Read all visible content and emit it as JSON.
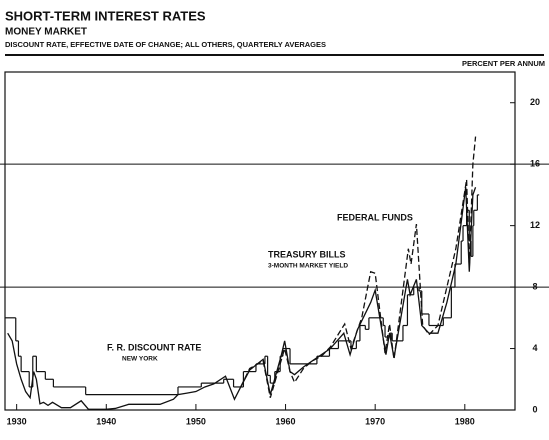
{
  "chart_data": {
    "type": "line",
    "title": "SHORT-TERM INTEREST RATES",
    "subtitle": "MONEY MARKET",
    "note": "DISCOUNT RATE, EFFECTIVE DATE OF CHANGE; ALL OTHERS, QUARTERLY AVERAGES",
    "y_axis_label": "PERCENT PER ANNUM",
    "xlim": [
      1928.7,
      1985.6
    ],
    "ylim": [
      0,
      22
    ],
    "xticks": [
      1930,
      1940,
      1950,
      1960,
      1970,
      1980
    ],
    "yticks": [
      0,
      4,
      8,
      12,
      16,
      20
    ],
    "hlines": [
      8,
      16
    ],
    "y_axis_side": "right",
    "annotations": [
      {
        "text": "FEDERAL FUNDS"
      },
      {
        "text": "TREASURY BILLS"
      },
      {
        "text": "3-MONTH MARKET YIELD"
      },
      {
        "text": "F. R. DISCOUNT RATE"
      },
      {
        "text": "NEW YORK"
      }
    ],
    "series": [
      {
        "name": "F. R. DISCOUNT RATE",
        "color": "#111",
        "style": "step",
        "x": [
          1928.7,
          1929.9,
          1930.2,
          1930.5,
          1931.4,
          1931.8,
          1932.2,
          1933.2,
          1934.1,
          1937.7,
          1948.0,
          1950.6,
          1953.1,
          1954.2,
          1955.3,
          1956.7,
          1957.7,
          1958.0,
          1958.3,
          1958.8,
          1959.4,
          1959.7,
          1960.5,
          1963.5,
          1964.9,
          1965.9,
          1967.3,
          1967.9,
          1968.3,
          1968.9,
          1969.3,
          1970.9,
          1971.1,
          1971.6,
          1971.9,
          1973.1,
          1973.6,
          1974.3,
          1974.9,
          1975.2,
          1976.0,
          1977.6,
          1978.5,
          1978.9,
          1979.6,
          1979.8,
          1980.2,
          1980.5,
          1980.7,
          1980.9,
          1981.0,
          1981.4,
          1981.6
        ],
        "values": [
          6.0,
          4.5,
          3.5,
          2.5,
          1.5,
          3.5,
          2.5,
          2.0,
          1.5,
          1.0,
          1.5,
          1.75,
          2.0,
          1.5,
          2.5,
          3.0,
          3.5,
          2.25,
          1.75,
          2.5,
          3.5,
          4.0,
          3.0,
          3.5,
          4.0,
          4.5,
          4.0,
          4.5,
          5.5,
          5.25,
          6.0,
          5.5,
          4.75,
          5.0,
          4.5,
          5.5,
          7.5,
          8.0,
          7.75,
          6.25,
          5.5,
          6.0,
          8.0,
          9.5,
          11.0,
          12.0,
          13.0,
          11.0,
          10.0,
          12.0,
          13.0,
          14.0,
          14.0
        ]
      },
      {
        "name": "TREASURY BILLS",
        "color": "#111",
        "style": "solid",
        "x": [
          1929.0,
          1929.5,
          1930.0,
          1930.5,
          1931.0,
          1931.5,
          1931.9,
          1932.2,
          1932.6,
          1933.0,
          1933.5,
          1934.0,
          1935.0,
          1936.0,
          1937.2,
          1938.0,
          1940.0,
          1941.0,
          1942.5,
          1946.0,
          1947.5,
          1948.0,
          1949.0,
          1950.0,
          1951.0,
          1952.0,
          1953.3,
          1954.3,
          1955.0,
          1956.0,
          1957.5,
          1958.3,
          1959.5,
          1959.9,
          1960.5,
          1961.0,
          1962.0,
          1963.0,
          1964.0,
          1965.0,
          1966.5,
          1967.2,
          1968.0,
          1969.5,
          1970.0,
          1971.2,
          1971.6,
          1972.1,
          1973.6,
          1973.9,
          1974.6,
          1975.2,
          1976.0,
          1977.0,
          1978.0,
          1979.0,
          1980.1,
          1980.5,
          1980.9,
          1981.2
        ],
        "values": [
          5.0,
          4.5,
          3.0,
          2.0,
          1.2,
          0.8,
          2.5,
          2.0,
          0.4,
          0.5,
          0.3,
          0.5,
          0.15,
          0.15,
          0.6,
          0.05,
          0.05,
          0.1,
          0.37,
          0.37,
          0.7,
          1.0,
          1.1,
          1.2,
          1.5,
          1.7,
          2.2,
          0.7,
          1.5,
          2.6,
          3.3,
          1.0,
          3.5,
          4.5,
          2.5,
          2.3,
          2.8,
          3.2,
          3.6,
          4.0,
          5.0,
          3.6,
          5.2,
          7.0,
          7.8,
          3.6,
          5.0,
          3.4,
          8.5,
          7.5,
          8.5,
          5.5,
          5.0,
          5.0,
          7.0,
          9.5,
          14.5,
          9.0,
          14.0,
          14.5
        ]
      },
      {
        "name": "FEDERAL FUNDS",
        "color": "#111",
        "style": "dashed",
        "x": [
          1955.0,
          1956.0,
          1957.5,
          1958.3,
          1959.9,
          1960.5,
          1961.0,
          1962.0,
          1963.0,
          1964.0,
          1965.0,
          1966.6,
          1967.3,
          1968.5,
          1969.5,
          1970.0,
          1971.1,
          1971.6,
          1972.1,
          1973.7,
          1974.0,
          1974.6,
          1975.3,
          1976.0,
          1977.0,
          1978.0,
          1979.0,
          1980.2,
          1980.5,
          1980.9,
          1981.2
        ],
        "values": [
          1.5,
          2.7,
          3.2,
          0.8,
          4.0,
          2.5,
          1.8,
          2.7,
          3.2,
          3.5,
          4.1,
          5.6,
          4.0,
          6.0,
          9.0,
          8.9,
          3.7,
          5.6,
          3.3,
          10.5,
          9.5,
          12.1,
          5.5,
          4.9,
          5.5,
          8.0,
          10.5,
          15.0,
          9.2,
          16.0,
          17.8
        ]
      }
    ]
  }
}
